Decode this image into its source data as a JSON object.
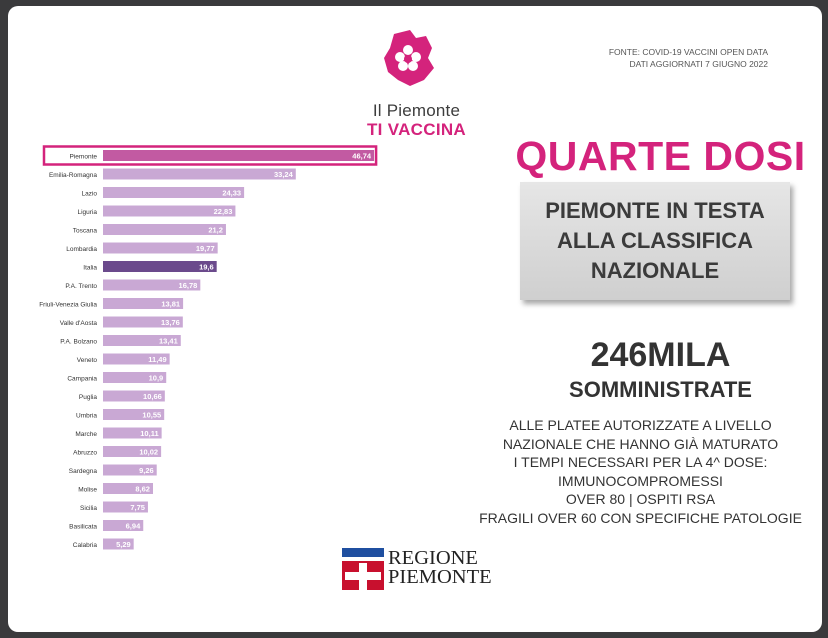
{
  "header": {
    "logo_line1": "Il Piemonte",
    "logo_line2": "TI VACCINA",
    "source_line1": "FONTE: COVID-19 VACCINI OPEN DATA",
    "source_line2": "DATI AGGIORNATI 7 GIUGNO 2022"
  },
  "side": {
    "headline": "QUARTE DOSI",
    "box_text": "PIEMONTE IN TESTA\nALLA CLASSIFICA\nNAZIONALE",
    "big_number": "246MILA",
    "big_sub": "SOMMINISTRATE",
    "desc_lines": [
      "ALLE PLATEE AUTORIZZATE A LIVELLO",
      "NAZIONALE CHE HANNO GIÀ MATURATO",
      "I TEMPI NECESSARI PER LA 4^ DOSE:",
      "IMMUNOCOMPROMESSI",
      "OVER 80 | OSPITI RSA",
      "FRAGILI OVER 60 CON SPECIFICHE PATOLOGIE"
    ]
  },
  "footer": {
    "regione_line1": "REGIONE",
    "regione_line2": "PIEMONTE"
  },
  "colors": {
    "accent": "#d4237c",
    "bar": "#c9a8d4",
    "bar_highlight_italia": "#6b4a8c",
    "bar_highlight_piemonte": "#c25aa2"
  },
  "chart_data": {
    "type": "bar",
    "orientation": "horizontal",
    "categories": [
      "Piemonte",
      "Emilia-Romagna",
      "Lazio",
      "Liguria",
      "Toscana",
      "Lombardia",
      "Italia",
      "P.A. Trento",
      "Friuli-Venezia Giulia",
      "Valle d'Aosta",
      "P.A. Bolzano",
      "Veneto",
      "Campania",
      "Puglia",
      "Umbria",
      "Marche",
      "Abruzzo",
      "Sardegna",
      "Molise",
      "Sicilia",
      "Basilicata",
      "Calabria"
    ],
    "values": [
      46.74,
      33.24,
      24.33,
      22.83,
      21.2,
      19.77,
      19.6,
      16.78,
      13.81,
      13.76,
      13.41,
      11.49,
      10.9,
      10.66,
      10.55,
      10.11,
      10.02,
      9.26,
      8.62,
      7.75,
      6.94,
      5.29
    ],
    "value_labels": [
      "46,74",
      "33,24",
      "24,33",
      "22,83",
      "21,2",
      "19,77",
      "19,6",
      "16,78",
      "13,81",
      "13,76",
      "13,41",
      "11,49",
      "10,9",
      "10,66",
      "10,55",
      "10,11",
      "10,02",
      "9,26",
      "8,62",
      "7,75",
      "6,94",
      "5,29"
    ],
    "highlight": {
      "Piemonte": "outlined",
      "Italia": "dark"
    },
    "xlim": [
      0,
      50
    ],
    "grid": false,
    "legend": "none"
  }
}
